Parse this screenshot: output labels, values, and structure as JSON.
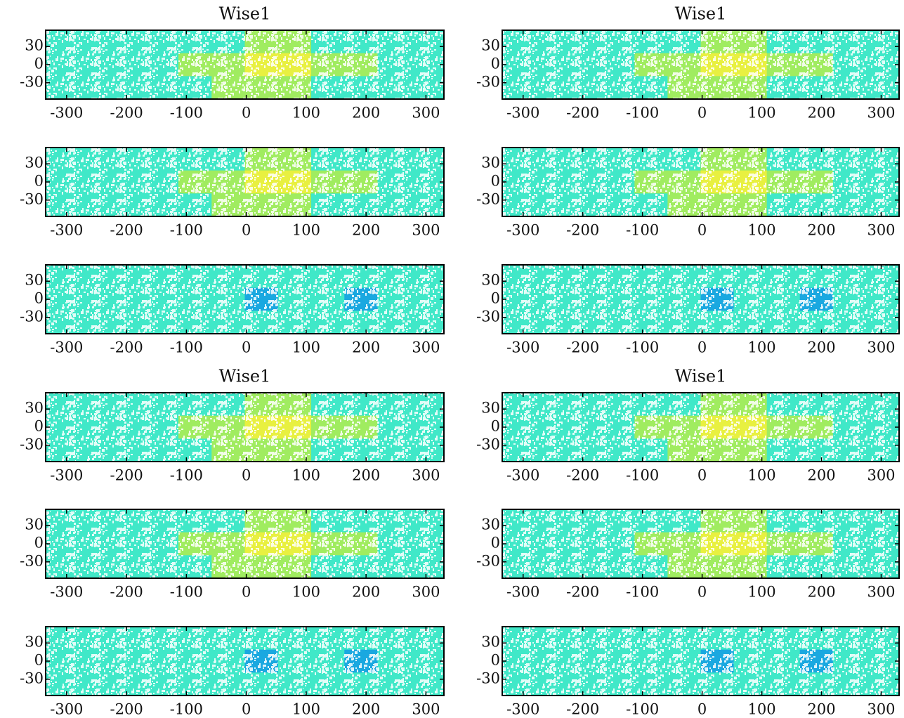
{
  "chart_data": [
    {
      "type": "heatmap",
      "title": "Wise1",
      "xlim": [
        -335,
        330
      ],
      "ylim": [
        -57,
        57
      ],
      "xticks": [
        -300,
        -200,
        -100,
        0,
        100,
        200,
        300
      ],
      "yticks": [
        -30,
        0,
        30
      ],
      "colors": [
        "#1aa8e0",
        "#40e8c8",
        "#a0ec60",
        "#e8f040"
      ],
      "values": [
        [
          1,
          1,
          1,
          1,
          1,
          1,
          2,
          2,
          1,
          1,
          1,
          1
        ],
        [
          1,
          1,
          1,
          1,
          2,
          2,
          3,
          3,
          2,
          2,
          1,
          1
        ],
        [
          1,
          1,
          1,
          1,
          1,
          2,
          2,
          2,
          1,
          1,
          1,
          1
        ]
      ]
    },
    {
      "type": "heatmap",
      "title": "Wise1",
      "xlim": [
        -335,
        330
      ],
      "ylim": [
        -57,
        57
      ],
      "xticks": [
        -300,
        -200,
        -100,
        0,
        100,
        200,
        300
      ],
      "yticks": [
        -30,
        0,
        30
      ],
      "colors": [
        "#1aa8e0",
        "#40e8c8",
        "#a0ec60",
        "#e8f040"
      ],
      "values": [
        [
          1,
          1,
          1,
          1,
          1,
          1,
          2,
          2,
          1,
          1,
          1,
          1
        ],
        [
          1,
          1,
          1,
          1,
          2,
          2,
          3,
          3,
          2,
          2,
          1,
          1
        ],
        [
          1,
          1,
          1,
          1,
          1,
          2,
          2,
          2,
          1,
          1,
          1,
          1
        ]
      ]
    },
    {
      "type": "heatmap",
      "xlim": [
        -335,
        330
      ],
      "ylim": [
        -57,
        57
      ],
      "xticks": [
        -300,
        -200,
        -100,
        0,
        100,
        200,
        300
      ],
      "yticks": [
        -30,
        0,
        30
      ],
      "colors": [
        "#1aa8e0",
        "#40e8c8",
        "#a0ec60",
        "#e8f040"
      ],
      "values": [
        [
          1,
          1,
          1,
          1,
          1,
          1,
          2,
          2,
          1,
          1,
          1,
          1
        ],
        [
          1,
          1,
          1,
          1,
          2,
          2,
          3,
          3,
          2,
          2,
          1,
          1
        ],
        [
          1,
          1,
          1,
          1,
          1,
          2,
          2,
          2,
          1,
          1,
          1,
          1
        ]
      ]
    },
    {
      "type": "heatmap",
      "xlim": [
        -335,
        330
      ],
      "ylim": [
        -57,
        57
      ],
      "xticks": [
        -300,
        -200,
        -100,
        0,
        100,
        200,
        300
      ],
      "yticks": [
        -30,
        0,
        30
      ],
      "colors": [
        "#1aa8e0",
        "#40e8c8",
        "#a0ec60",
        "#e8f040"
      ],
      "values": [
        [
          1,
          1,
          1,
          1,
          1,
          1,
          2,
          2,
          1,
          1,
          1,
          1
        ],
        [
          1,
          1,
          1,
          1,
          2,
          2,
          3,
          3,
          2,
          2,
          1,
          1
        ],
        [
          1,
          1,
          1,
          1,
          1,
          2,
          2,
          2,
          1,
          1,
          1,
          1
        ]
      ]
    },
    {
      "type": "heatmap",
      "xlim": [
        -335,
        330
      ],
      "ylim": [
        -57,
        57
      ],
      "xticks": [
        -300,
        -200,
        -100,
        0,
        100,
        200,
        300
      ],
      "yticks": [
        -30,
        0,
        30
      ],
      "colors": [
        "#1aa8e0",
        "#40e8c8",
        "#a0ec60",
        "#e8f040"
      ],
      "values": [
        [
          1,
          1,
          1,
          1,
          1,
          1,
          1,
          1,
          1,
          1,
          1,
          1
        ],
        [
          1,
          1,
          1,
          1,
          1,
          1,
          0,
          1,
          1,
          0,
          1,
          1
        ],
        [
          1,
          1,
          1,
          1,
          1,
          1,
          1,
          1,
          1,
          1,
          1,
          1
        ]
      ]
    },
    {
      "type": "heatmap",
      "xlim": [
        -335,
        330
      ],
      "ylim": [
        -57,
        57
      ],
      "xticks": [
        -300,
        -200,
        -100,
        0,
        100,
        200,
        300
      ],
      "yticks": [
        -30,
        0,
        30
      ],
      "colors": [
        "#1aa8e0",
        "#40e8c8",
        "#a0ec60",
        "#e8f040"
      ],
      "values": [
        [
          1,
          1,
          1,
          1,
          1,
          1,
          1,
          1,
          1,
          1,
          1,
          1
        ],
        [
          1,
          1,
          1,
          1,
          1,
          1,
          0,
          1,
          1,
          0,
          1,
          1
        ],
        [
          1,
          1,
          1,
          1,
          1,
          1,
          1,
          1,
          1,
          1,
          1,
          1
        ]
      ]
    },
    {
      "type": "heatmap",
      "title": "Wise1",
      "xlim": [
        -335,
        330
      ],
      "ylim": [
        -57,
        57
      ],
      "xticks": [
        -300,
        -200,
        -100,
        0,
        100,
        200,
        300
      ],
      "yticks": [
        -30,
        0,
        30
      ],
      "colors": [
        "#1aa8e0",
        "#40e8c8",
        "#a0ec60",
        "#e8f040"
      ],
      "values": [
        [
          1,
          1,
          1,
          1,
          1,
          1,
          2,
          2,
          1,
          1,
          1,
          1
        ],
        [
          1,
          1,
          1,
          1,
          2,
          2,
          3,
          3,
          2,
          2,
          1,
          1
        ],
        [
          1,
          1,
          1,
          1,
          1,
          2,
          2,
          2,
          1,
          1,
          1,
          1
        ]
      ]
    },
    {
      "type": "heatmap",
      "title": "Wise1",
      "xlim": [
        -335,
        330
      ],
      "ylim": [
        -57,
        57
      ],
      "xticks": [
        -300,
        -200,
        -100,
        0,
        100,
        200,
        300
      ],
      "yticks": [
        -30,
        0,
        30
      ],
      "colors": [
        "#1aa8e0",
        "#40e8c8",
        "#a0ec60",
        "#e8f040"
      ],
      "values": [
        [
          1,
          1,
          1,
          1,
          1,
          1,
          2,
          2,
          1,
          1,
          1,
          1
        ],
        [
          1,
          1,
          1,
          1,
          2,
          2,
          3,
          3,
          2,
          2,
          1,
          1
        ],
        [
          1,
          1,
          1,
          1,
          1,
          2,
          2,
          2,
          1,
          1,
          1,
          1
        ]
      ]
    },
    {
      "type": "heatmap",
      "xlim": [
        -335,
        330
      ],
      "ylim": [
        -57,
        57
      ],
      "xticks": [
        -300,
        -200,
        -100,
        0,
        100,
        200,
        300
      ],
      "yticks": [
        -30,
        0,
        30
      ],
      "colors": [
        "#1aa8e0",
        "#40e8c8",
        "#a0ec60",
        "#e8f040"
      ],
      "values": [
        [
          1,
          1,
          1,
          1,
          1,
          1,
          2,
          2,
          1,
          1,
          1,
          1
        ],
        [
          1,
          1,
          1,
          1,
          2,
          2,
          3,
          3,
          2,
          2,
          1,
          1
        ],
        [
          1,
          1,
          1,
          1,
          1,
          2,
          2,
          2,
          1,
          1,
          1,
          1
        ]
      ]
    },
    {
      "type": "heatmap",
      "xlim": [
        -335,
        330
      ],
      "ylim": [
        -57,
        57
      ],
      "xticks": [
        -300,
        -200,
        -100,
        0,
        100,
        200,
        300
      ],
      "yticks": [
        -30,
        0,
        30
      ],
      "colors": [
        "#1aa8e0",
        "#40e8c8",
        "#a0ec60",
        "#e8f040"
      ],
      "values": [
        [
          1,
          1,
          1,
          1,
          1,
          1,
          2,
          2,
          1,
          1,
          1,
          1
        ],
        [
          1,
          1,
          1,
          1,
          2,
          2,
          3,
          3,
          2,
          2,
          1,
          1
        ],
        [
          1,
          1,
          1,
          1,
          1,
          2,
          2,
          2,
          1,
          1,
          1,
          1
        ]
      ]
    },
    {
      "type": "heatmap",
      "xlim": [
        -335,
        330
      ],
      "ylim": [
        -57,
        57
      ],
      "xticks": [
        -300,
        -200,
        -100,
        0,
        100,
        200,
        300
      ],
      "yticks": [
        -30,
        0,
        30
      ],
      "colors": [
        "#1aa8e0",
        "#40e8c8",
        "#a0ec60",
        "#e8f040"
      ],
      "values": [
        [
          1,
          1,
          1,
          1,
          1,
          1,
          1,
          1,
          1,
          1,
          1,
          1
        ],
        [
          1,
          1,
          1,
          1,
          1,
          1,
          0,
          1,
          1,
          0,
          1,
          1
        ],
        [
          1,
          1,
          1,
          1,
          1,
          1,
          1,
          1,
          1,
          1,
          1,
          1
        ]
      ]
    },
    {
      "type": "heatmap",
      "xlim": [
        -335,
        330
      ],
      "ylim": [
        -57,
        57
      ],
      "xticks": [
        -300,
        -200,
        -100,
        0,
        100,
        200,
        300
      ],
      "yticks": [
        -30,
        0,
        30
      ],
      "colors": [
        "#1aa8e0",
        "#40e8c8",
        "#a0ec60",
        "#e8f040"
      ],
      "values": [
        [
          1,
          1,
          1,
          1,
          1,
          1,
          1,
          1,
          1,
          1,
          1,
          1
        ],
        [
          1,
          1,
          1,
          1,
          1,
          1,
          0,
          1,
          1,
          0,
          1,
          1
        ],
        [
          1,
          1,
          1,
          1,
          1,
          1,
          1,
          1,
          1,
          1,
          1,
          1
        ]
      ]
    }
  ]
}
